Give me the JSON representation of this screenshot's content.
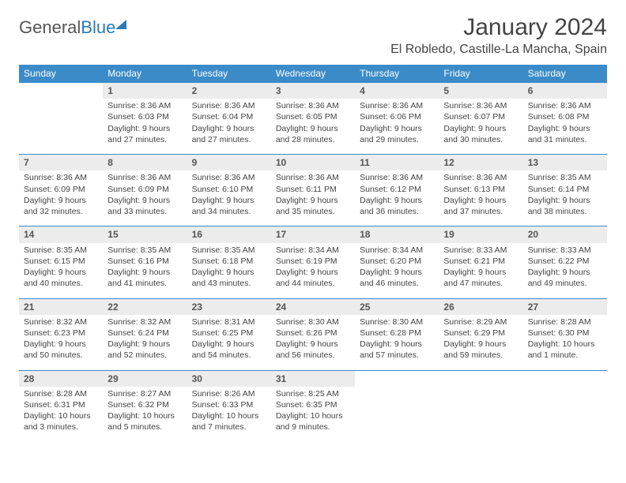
{
  "brand": {
    "word1": "General",
    "word2": "Blue"
  },
  "title": {
    "month": "January 2024",
    "location": "El Robledo, Castille-La Mancha, Spain"
  },
  "colors": {
    "header_bg": "#3b8bc8",
    "daynum_bg": "#ececec",
    "rule": "#3b8bc8"
  },
  "day_headers": [
    "Sunday",
    "Monday",
    "Tuesday",
    "Wednesday",
    "Thursday",
    "Friday",
    "Saturday"
  ],
  "start_offset": 1,
  "days": [
    {
      "n": 1,
      "sunrise": "8:36 AM",
      "sunset": "6:03 PM",
      "dl": "9 hours and 27 minutes."
    },
    {
      "n": 2,
      "sunrise": "8:36 AM",
      "sunset": "6:04 PM",
      "dl": "9 hours and 27 minutes."
    },
    {
      "n": 3,
      "sunrise": "8:36 AM",
      "sunset": "6:05 PM",
      "dl": "9 hours and 28 minutes."
    },
    {
      "n": 4,
      "sunrise": "8:36 AM",
      "sunset": "6:06 PM",
      "dl": "9 hours and 29 minutes."
    },
    {
      "n": 5,
      "sunrise": "8:36 AM",
      "sunset": "6:07 PM",
      "dl": "9 hours and 30 minutes."
    },
    {
      "n": 6,
      "sunrise": "8:36 AM",
      "sunset": "6:08 PM",
      "dl": "9 hours and 31 minutes."
    },
    {
      "n": 7,
      "sunrise": "8:36 AM",
      "sunset": "6:09 PM",
      "dl": "9 hours and 32 minutes."
    },
    {
      "n": 8,
      "sunrise": "8:36 AM",
      "sunset": "6:09 PM",
      "dl": "9 hours and 33 minutes."
    },
    {
      "n": 9,
      "sunrise": "8:36 AM",
      "sunset": "6:10 PM",
      "dl": "9 hours and 34 minutes."
    },
    {
      "n": 10,
      "sunrise": "8:36 AM",
      "sunset": "6:11 PM",
      "dl": "9 hours and 35 minutes."
    },
    {
      "n": 11,
      "sunrise": "8:36 AM",
      "sunset": "6:12 PM",
      "dl": "9 hours and 36 minutes."
    },
    {
      "n": 12,
      "sunrise": "8:36 AM",
      "sunset": "6:13 PM",
      "dl": "9 hours and 37 minutes."
    },
    {
      "n": 13,
      "sunrise": "8:35 AM",
      "sunset": "6:14 PM",
      "dl": "9 hours and 38 minutes."
    },
    {
      "n": 14,
      "sunrise": "8:35 AM",
      "sunset": "6:15 PM",
      "dl": "9 hours and 40 minutes."
    },
    {
      "n": 15,
      "sunrise": "8:35 AM",
      "sunset": "6:16 PM",
      "dl": "9 hours and 41 minutes."
    },
    {
      "n": 16,
      "sunrise": "8:35 AM",
      "sunset": "6:18 PM",
      "dl": "9 hours and 43 minutes."
    },
    {
      "n": 17,
      "sunrise": "8:34 AM",
      "sunset": "6:19 PM",
      "dl": "9 hours and 44 minutes."
    },
    {
      "n": 18,
      "sunrise": "8:34 AM",
      "sunset": "6:20 PM",
      "dl": "9 hours and 46 minutes."
    },
    {
      "n": 19,
      "sunrise": "8:33 AM",
      "sunset": "6:21 PM",
      "dl": "9 hours and 47 minutes."
    },
    {
      "n": 20,
      "sunrise": "8:33 AM",
      "sunset": "6:22 PM",
      "dl": "9 hours and 49 minutes."
    },
    {
      "n": 21,
      "sunrise": "8:32 AM",
      "sunset": "6:23 PM",
      "dl": "9 hours and 50 minutes."
    },
    {
      "n": 22,
      "sunrise": "8:32 AM",
      "sunset": "6:24 PM",
      "dl": "9 hours and 52 minutes."
    },
    {
      "n": 23,
      "sunrise": "8:31 AM",
      "sunset": "6:25 PM",
      "dl": "9 hours and 54 minutes."
    },
    {
      "n": 24,
      "sunrise": "8:30 AM",
      "sunset": "6:26 PM",
      "dl": "9 hours and 56 minutes."
    },
    {
      "n": 25,
      "sunrise": "8:30 AM",
      "sunset": "6:28 PM",
      "dl": "9 hours and 57 minutes."
    },
    {
      "n": 26,
      "sunrise": "8:29 AM",
      "sunset": "6:29 PM",
      "dl": "9 hours and 59 minutes."
    },
    {
      "n": 27,
      "sunrise": "8:28 AM",
      "sunset": "6:30 PM",
      "dl": "10 hours and 1 minute."
    },
    {
      "n": 28,
      "sunrise": "8:28 AM",
      "sunset": "6:31 PM",
      "dl": "10 hours and 3 minutes."
    },
    {
      "n": 29,
      "sunrise": "8:27 AM",
      "sunset": "6:32 PM",
      "dl": "10 hours and 5 minutes."
    },
    {
      "n": 30,
      "sunrise": "8:26 AM",
      "sunset": "6:33 PM",
      "dl": "10 hours and 7 minutes."
    },
    {
      "n": 31,
      "sunrise": "8:25 AM",
      "sunset": "6:35 PM",
      "dl": "10 hours and 9 minutes."
    }
  ],
  "labels": {
    "sunrise": "Sunrise:",
    "sunset": "Sunset:",
    "daylight": "Daylight:"
  }
}
